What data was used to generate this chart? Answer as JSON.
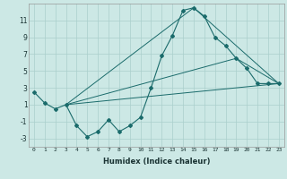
{
  "xlabel": "Humidex (Indice chaleur)",
  "bg_color": "#cce8e5",
  "grid_color": "#aacfcc",
  "line_color": "#1a6b6b",
  "series": [
    [
      0,
      2.5
    ],
    [
      1,
      1.2
    ],
    [
      2,
      0.5
    ],
    [
      3,
      1.0
    ],
    [
      4,
      -1.5
    ],
    [
      5,
      -2.8
    ],
    [
      6,
      -2.2
    ],
    [
      7,
      -0.8
    ],
    [
      8,
      -2.2
    ],
    [
      9,
      -1.5
    ],
    [
      10,
      -0.5
    ],
    [
      11,
      3.0
    ],
    [
      12,
      6.8
    ],
    [
      13,
      9.2
    ],
    [
      14,
      12.2
    ],
    [
      15,
      12.5
    ],
    [
      16,
      11.5
    ],
    [
      17,
      9.0
    ],
    [
      18,
      8.0
    ],
    [
      19,
      6.5
    ],
    [
      20,
      5.3
    ],
    [
      21,
      3.5
    ],
    [
      22,
      3.5
    ],
    [
      23,
      3.5
    ]
  ],
  "line2": [
    [
      3,
      1.0
    ],
    [
      23,
      3.5
    ]
  ],
  "line3": [
    [
      3,
      1.0
    ],
    [
      15,
      12.5
    ],
    [
      23,
      3.5
    ]
  ],
  "line4": [
    [
      3,
      1.0
    ],
    [
      19,
      6.5
    ],
    [
      23,
      3.5
    ]
  ],
  "xlim": [
    -0.5,
    23.5
  ],
  "ylim": [
    -4,
    13
  ],
  "yticks": [
    -3,
    -1,
    1,
    3,
    5,
    7,
    9,
    11
  ],
  "xticks": [
    0,
    1,
    2,
    3,
    4,
    5,
    6,
    7,
    8,
    9,
    10,
    11,
    12,
    13,
    14,
    15,
    16,
    17,
    18,
    19,
    20,
    21,
    22,
    23
  ],
  "xlabel_fontsize": 6.0,
  "xtick_fontsize": 4.5,
  "ytick_fontsize": 5.5
}
